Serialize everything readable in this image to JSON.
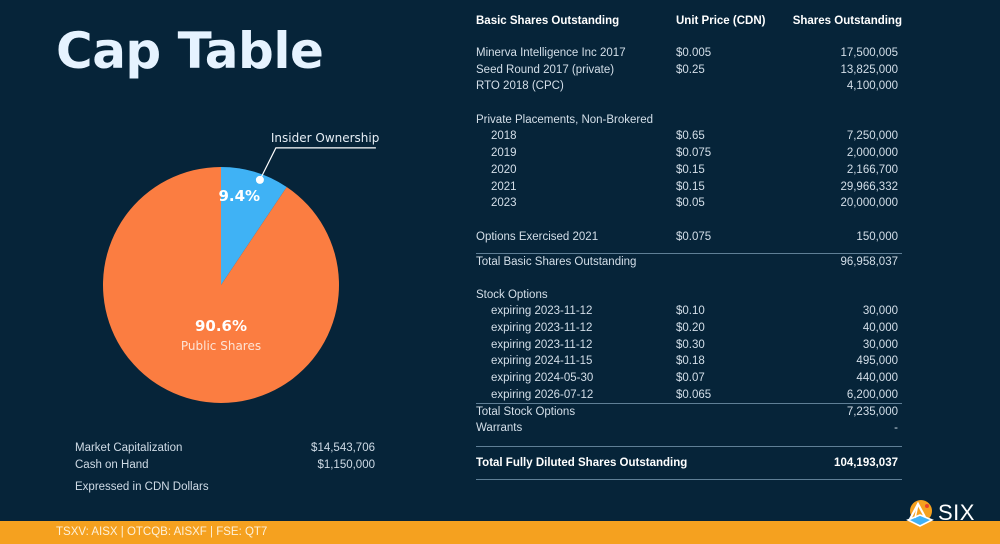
{
  "title": "Cap Table",
  "chart_data": {
    "type": "pie",
    "title": "",
    "slices": [
      {
        "name": "Insider Ownership",
        "value": 9.4,
        "label": "9.4%",
        "color": "#3fb2f5"
      },
      {
        "name": "Public Shares",
        "value": 90.6,
        "label": "90.6%",
        "color": "#fb7d41"
      }
    ],
    "start_angle_deg": 0,
    "direction": "clockwise",
    "annotations": [
      {
        "text": "Insider Ownership",
        "target": "Insider Ownership",
        "placement": "top-right callout"
      },
      {
        "text": "Public Shares",
        "target": "Public Shares",
        "placement": "inside"
      }
    ]
  },
  "summary": {
    "market_cap_label": "Market Capitalization",
    "market_cap_value": "$14,543,706",
    "cash_label": "Cash on Hand",
    "cash_value": "$1,150,000",
    "note": "Expressed in CDN Dollars"
  },
  "table": {
    "headers": [
      "Basic Shares Outstanding",
      "Unit Price (CDN)",
      "Shares Outstanding"
    ],
    "basic_rows": [
      {
        "name": "Minerva Intelligence Inc 2017",
        "price": "$0.005",
        "shares": "17,500,005"
      },
      {
        "name": "Seed Round 2017 (private)",
        "price": "$0.25",
        "shares": "13,825,000"
      },
      {
        "name": "RTO 2018 (CPC)",
        "price": "",
        "shares": "4,100,000"
      }
    ],
    "private_placements_label": "Private Placements, Non-Brokered",
    "private_placements": [
      {
        "name": "2018",
        "price": "$0.65",
        "shares": "7,250,000"
      },
      {
        "name": "2019",
        "price": "$0.075",
        "shares": "2,000,000"
      },
      {
        "name": "2020",
        "price": "$0.15",
        "shares": "2,166,700"
      },
      {
        "name": "2021",
        "price": "$0.15",
        "shares": "29,966,332"
      },
      {
        "name": "2023",
        "price": "$0.05",
        "shares": "20,000,000"
      }
    ],
    "options_exercised": {
      "name": "Options Exercised 2021",
      "price": "$0.075",
      "shares": "150,000"
    },
    "total_basic": {
      "name": "Total Basic Shares Outstanding",
      "shares": "96,958,037"
    },
    "stock_options_label": "Stock Options",
    "stock_options": [
      {
        "name": "expiring 2023-11-12",
        "price": "$0.10",
        "shares": "30,000"
      },
      {
        "name": "expiring 2023-11-12",
        "price": "$0.20",
        "shares": "40,000"
      },
      {
        "name": "expiring 2023-11-12",
        "price": "$0.30",
        "shares": "30,000"
      },
      {
        "name": "expiring 2024-11-15",
        "price": "$0.18",
        "shares": "495,000"
      },
      {
        "name": "expiring 2024-05-30",
        "price": "$0.07",
        "shares": "440,000"
      },
      {
        "name": "expiring 2026-07-12",
        "price": "$0.065",
        "shares": "6,200,000"
      }
    ],
    "total_stock_options": {
      "name": "Total Stock Options",
      "shares": "7,235,000"
    },
    "warrants": {
      "name": "Warrants",
      "shares": "-"
    },
    "total_fully_diluted": {
      "name": "Total Fully Diluted Shares Outstanding",
      "shares": "104,193,037"
    }
  },
  "footer": {
    "tickers": "TSXV: AISX | OTCQB: AISXF | FSE: QT7",
    "logo_text": "SIX",
    "color": "#f5a11f"
  }
}
